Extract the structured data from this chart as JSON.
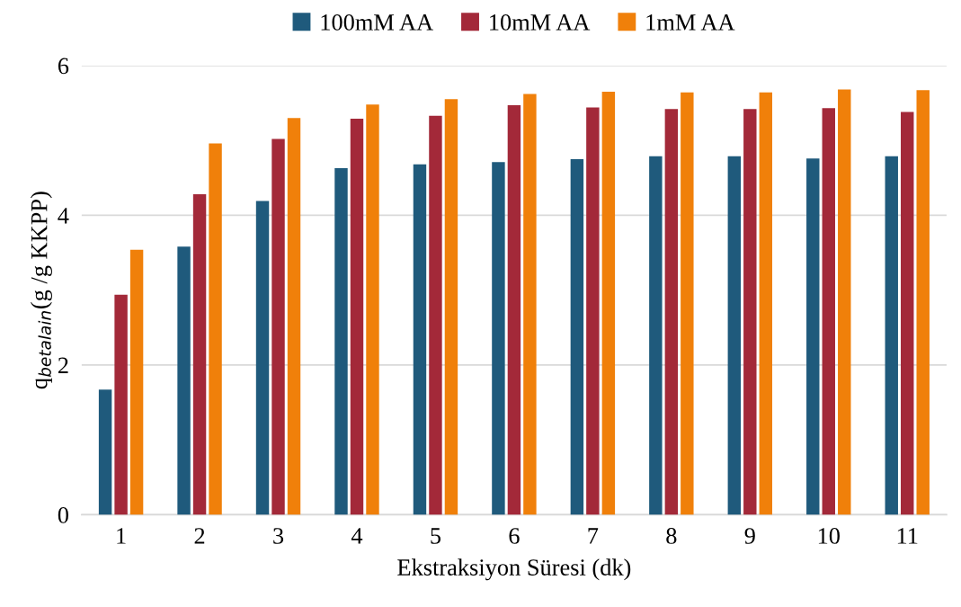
{
  "chart_data": {
    "type": "bar",
    "xlabel": "Ekstraksiyon Süresi (dk)",
    "ylabel": "q$_{betalain}$(g /g KKPP)",
    "categories": [
      "1",
      "2",
      "3",
      "4",
      "5",
      "6",
      "7",
      "8",
      "9",
      "10",
      "11"
    ],
    "series": [
      {
        "name": "100mM AA",
        "color": "#1f5a7c",
        "values": [
          1.67,
          3.58,
          4.19,
          4.63,
          4.68,
          4.71,
          4.75,
          4.79,
          4.79,
          4.76,
          4.79
        ]
      },
      {
        "name": "10mM AA",
        "color": "#a32939",
        "values": [
          2.94,
          4.28,
          5.02,
          5.29,
          5.33,
          5.47,
          5.44,
          5.42,
          5.42,
          5.43,
          5.38
        ]
      },
      {
        "name": "1mM AA",
        "color": "#f0800a",
        "values": [
          3.54,
          4.96,
          5.3,
          5.48,
          5.55,
          5.62,
          5.65,
          5.64,
          5.64,
          5.68,
          5.67
        ]
      }
    ],
    "ylim": [
      0,
      6
    ],
    "yticks": [
      0,
      2,
      4,
      6
    ],
    "grid": "y",
    "legend": "top"
  }
}
